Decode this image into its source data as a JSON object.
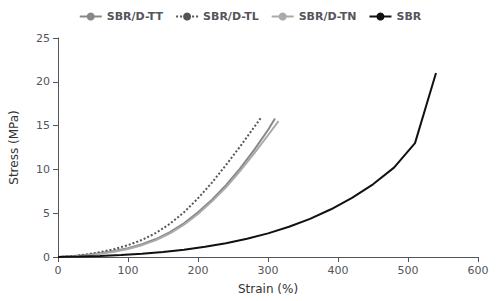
{
  "chart_data": {
    "type": "line",
    "xlabel": "Strain (%)",
    "ylabel": "Stress (MPa)",
    "xlim": [
      0,
      600
    ],
    "ylim": [
      0,
      25
    ],
    "xticks": [
      0,
      100,
      200,
      300,
      400,
      500,
      600
    ],
    "yticks": [
      0,
      5,
      10,
      15,
      20,
      25
    ],
    "grid": false,
    "legend": "upper center",
    "series": [
      {
        "name": "SBR/D-TT",
        "color": "#888888",
        "line_style": "solid",
        "x": [
          0,
          20,
          40,
          60,
          80,
          100,
          120,
          140,
          160,
          180,
          200,
          220,
          240,
          260,
          280,
          300,
          310
        ],
        "values": [
          0,
          0.08,
          0.22,
          0.42,
          0.68,
          1.0,
          1.45,
          2.05,
          2.85,
          3.85,
          5.1,
          6.55,
          8.2,
          10.1,
          12.2,
          14.5,
          15.8
        ]
      },
      {
        "name": "SBR/D-TL",
        "color": "#555555",
        "line_style": "dotted",
        "x": [
          0,
          20,
          40,
          60,
          80,
          100,
          120,
          140,
          160,
          180,
          200,
          220,
          240,
          260,
          280,
          290
        ],
        "values": [
          0,
          0.1,
          0.28,
          0.55,
          0.9,
          1.35,
          1.95,
          2.75,
          3.8,
          5.1,
          6.7,
          8.5,
          10.5,
          12.6,
          14.8,
          15.9
        ]
      },
      {
        "name": "SBR/D-TN",
        "color": "#aaaaaa",
        "line_style": "solid",
        "x": [
          0,
          20,
          40,
          60,
          80,
          100,
          120,
          140,
          160,
          180,
          200,
          220,
          240,
          260,
          280,
          300,
          315
        ],
        "values": [
          0,
          0.06,
          0.18,
          0.36,
          0.6,
          0.92,
          1.35,
          1.92,
          2.7,
          3.68,
          4.9,
          6.35,
          7.95,
          9.8,
          11.8,
          13.9,
          15.5
        ]
      },
      {
        "name": "SBR",
        "color": "#111111",
        "line_style": "solid",
        "x": [
          0,
          30,
          60,
          90,
          120,
          150,
          180,
          210,
          240,
          270,
          300,
          330,
          360,
          390,
          420,
          450,
          480,
          510,
          540
        ],
        "values": [
          0,
          0.05,
          0.12,
          0.23,
          0.38,
          0.58,
          0.84,
          1.17,
          1.58,
          2.08,
          2.7,
          3.45,
          4.35,
          5.45,
          6.75,
          8.3,
          10.2,
          13.0,
          21.0
        ]
      }
    ]
  }
}
